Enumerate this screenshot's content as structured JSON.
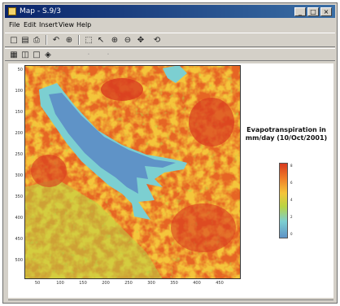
{
  "window": {
    "title": "Map - S.9/3",
    "buttons": [
      "_",
      "□",
      "×"
    ]
  },
  "menu": [
    {
      "label": "File"
    },
    {
      "label": "Edit"
    },
    {
      "label": "Insert"
    },
    {
      "label": "View"
    },
    {
      "label": "Help"
    }
  ],
  "toolbar1": [
    {
      "icon": "new-icon",
      "glyph": "□"
    },
    {
      "icon": "save-icon",
      "glyph": "▤"
    },
    {
      "icon": "print-icon",
      "glyph": "⎙"
    },
    {
      "icon": "rotate-icon",
      "glyph": "↶"
    },
    {
      "icon": "zoom-fit-icon",
      "glyph": "⊕"
    },
    {
      "icon": "select-icon",
      "glyph": "⬚"
    },
    {
      "icon": "arrow-icon",
      "glyph": "↖"
    },
    {
      "icon": "zoom-in-icon",
      "glyph": "⊕"
    },
    {
      "icon": "zoom-out-icon",
      "glyph": "⊖"
    },
    {
      "icon": "pan-icon",
      "glyph": "✥"
    },
    {
      "icon": "reset-icon",
      "glyph": "⟲"
    }
  ],
  "toolbar2": [
    {
      "icon": "grid-icon",
      "glyph": "▦"
    },
    {
      "icon": "layer-icon",
      "glyph": "◫"
    },
    {
      "icon": "box-icon",
      "glyph": "□"
    },
    {
      "icon": "tool-icon",
      "glyph": "◈"
    },
    {
      "icon": "disabled-icon-1",
      "glyph": "·"
    },
    {
      "icon": "disabled-icon-2",
      "glyph": "·"
    }
  ],
  "map": {
    "y_ticks": [
      "50",
      "100",
      "150",
      "200",
      "250",
      "300",
      "350",
      "400",
      "450",
      "500"
    ],
    "x_ticks": [
      "50",
      "100",
      "150",
      "200",
      "250",
      "300",
      "350",
      "400",
      "450"
    ],
    "legend_title": "Evapotranspiration in mm/day (10/Oct/2001)",
    "colorbar_labels": [
      "8",
      "6",
      "4",
      "2",
      "0"
    ],
    "colors": {
      "high": "#d83a1f",
      "mid_high": "#ef7d27",
      "mid": "#f4c53a",
      "mid_low": "#b9d443",
      "low": "#7ccfd1",
      "lowest": "#5f93c7"
    }
  },
  "status": ""
}
